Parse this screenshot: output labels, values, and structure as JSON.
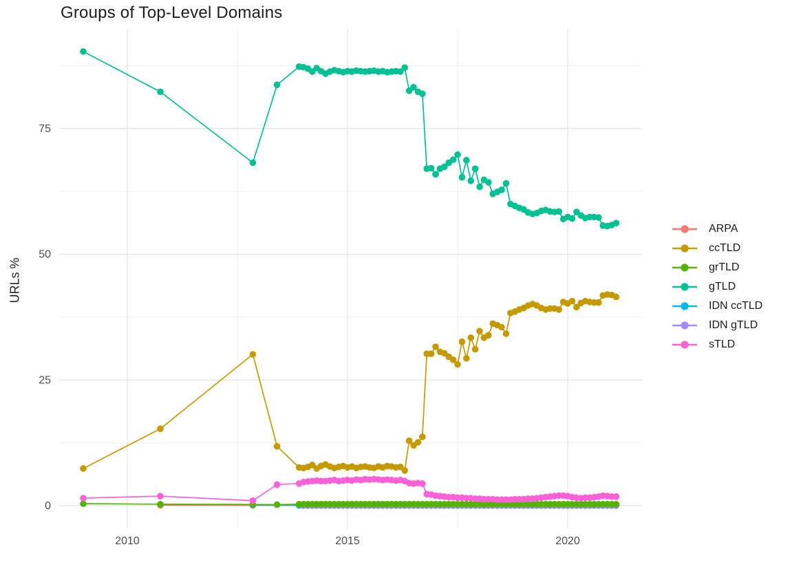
{
  "title": "Groups of Top-Level Domains",
  "axes": {
    "y_label": "URLs %",
    "y_ticks": [
      0,
      25,
      50,
      75
    ],
    "y_tick_labels": [
      "0",
      "25",
      "50",
      "75"
    ],
    "y_minor": [
      12.5,
      37.5,
      62.5,
      87.5
    ],
    "x_ticks": [
      2010,
      2015,
      2020
    ],
    "x_tick_labels": [
      "2010",
      "2015",
      "2020"
    ],
    "x_minor": [
      2012.5,
      2017.5
    ],
    "grid": true,
    "colors": {
      "major_grid": "#e2e2e2",
      "minor_grid": "#efefef",
      "tick_text": "#4d4d4d"
    }
  },
  "legend": {
    "position": "right",
    "items": [
      {
        "label": "ARPA",
        "color": "#F8766D"
      },
      {
        "label": "ccTLD",
        "color": "#C49A00"
      },
      {
        "label": "grTLD",
        "color": "#53B400"
      },
      {
        "label": "gTLD",
        "color": "#00C094"
      },
      {
        "label": "IDN ccTLD",
        "color": "#00B6EB"
      },
      {
        "label": "IDN gTLD",
        "color": "#A58AFF"
      },
      {
        "label": "sTLD",
        "color": "#FB61D7"
      }
    ]
  },
  "chart_data": {
    "type": "line-scatter",
    "title": "Groups of Top-Level Domains",
    "xlabel": "",
    "ylabel": "URLs %",
    "xlim": [
      2008.45,
      2021.7
    ],
    "ylim": [
      -4.5,
      94.8
    ],
    "draw_order": [
      "ARPA",
      "ccTLD",
      "IDN ccTLD",
      "IDN gTLD",
      "grTLD",
      "gTLD",
      "sTLD"
    ],
    "series": [
      {
        "name": "ARPA",
        "color": "#F8766D",
        "points": [
          [
            2010.75,
            0.1
          ],
          [
            2012.85,
            0.08
          ]
        ],
        "runs": [
          {
            "x0": 2013.9,
            "dx": 0.1,
            "n": 73,
            "y": 0.05
          }
        ]
      },
      {
        "name": "ccTLD",
        "color": "#C49A00",
        "points": [
          [
            2009.0,
            7.4
          ],
          [
            2010.75,
            15.3
          ],
          [
            2012.85,
            30.1
          ],
          [
            2013.4,
            11.8
          ],
          [
            2013.9,
            7.6
          ],
          [
            2014.0,
            7.5
          ],
          [
            2014.1,
            7.7
          ],
          [
            2014.2,
            8.1
          ],
          [
            2014.3,
            7.4
          ],
          [
            2014.4,
            7.9
          ],
          [
            2014.5,
            8.2
          ],
          [
            2014.6,
            7.8
          ],
          [
            2014.7,
            7.5
          ],
          [
            2014.8,
            7.7
          ],
          [
            2014.9,
            7.9
          ],
          [
            2015.0,
            7.6
          ],
          [
            2015.1,
            7.8
          ],
          [
            2015.2,
            7.5
          ],
          [
            2015.3,
            7.7
          ],
          [
            2015.4,
            7.8
          ],
          [
            2015.5,
            7.6
          ],
          [
            2015.6,
            7.5
          ],
          [
            2015.7,
            7.8
          ],
          [
            2015.8,
            7.6
          ],
          [
            2015.9,
            7.9
          ],
          [
            2016.0,
            7.8
          ],
          [
            2016.1,
            7.6
          ],
          [
            2016.2,
            7.7
          ],
          [
            2016.3,
            7.0
          ],
          [
            2016.4,
            12.9
          ],
          [
            2016.5,
            12.0
          ],
          [
            2016.6,
            12.6
          ],
          [
            2016.7,
            13.7
          ],
          [
            2016.8,
            30.2
          ],
          [
            2016.9,
            30.2
          ],
          [
            2017.0,
            31.6
          ],
          [
            2017.1,
            30.6
          ],
          [
            2017.2,
            30.3
          ],
          [
            2017.3,
            29.6
          ],
          [
            2017.4,
            29.0
          ],
          [
            2017.5,
            28.1
          ],
          [
            2017.6,
            32.6
          ],
          [
            2017.7,
            29.3
          ],
          [
            2017.8,
            33.4
          ],
          [
            2017.9,
            31.1
          ],
          [
            2018.0,
            34.7
          ],
          [
            2018.1,
            33.4
          ],
          [
            2018.2,
            33.9
          ],
          [
            2018.3,
            36.2
          ],
          [
            2018.4,
            35.9
          ],
          [
            2018.5,
            35.5
          ],
          [
            2018.6,
            34.2
          ],
          [
            2018.7,
            38.3
          ],
          [
            2018.8,
            38.6
          ],
          [
            2018.9,
            39.0
          ],
          [
            2019.0,
            39.3
          ],
          [
            2019.1,
            39.8
          ],
          [
            2019.2,
            40.1
          ],
          [
            2019.3,
            39.8
          ],
          [
            2019.4,
            39.3
          ],
          [
            2019.5,
            39.0
          ],
          [
            2019.6,
            39.2
          ],
          [
            2019.7,
            39.2
          ],
          [
            2019.8,
            39.0
          ],
          [
            2019.9,
            40.5
          ],
          [
            2020.0,
            40.2
          ],
          [
            2020.1,
            40.7
          ],
          [
            2020.2,
            39.5
          ],
          [
            2020.3,
            40.3
          ],
          [
            2020.4,
            40.7
          ],
          [
            2020.5,
            40.5
          ],
          [
            2020.6,
            40.4
          ],
          [
            2020.7,
            40.4
          ],
          [
            2020.8,
            41.8
          ],
          [
            2020.9,
            42.0
          ],
          [
            2021.0,
            41.9
          ],
          [
            2021.1,
            41.5
          ]
        ]
      },
      {
        "name": "grTLD",
        "color": "#53B400",
        "points": [
          [
            2009.0,
            0.4
          ],
          [
            2010.75,
            0.3
          ],
          [
            2012.85,
            0.25
          ],
          [
            2013.4,
            0.2
          ]
        ],
        "runs": [
          {
            "x0": 2013.9,
            "dx": 0.1,
            "n": 73,
            "y": 0.3
          }
        ]
      },
      {
        "name": "gTLD",
        "color": "#00C094",
        "points": [
          [
            2009.0,
            90.3
          ],
          [
            2010.75,
            82.3
          ],
          [
            2012.85,
            68.2
          ],
          [
            2013.4,
            83.7
          ],
          [
            2013.9,
            87.3
          ],
          [
            2014.0,
            87.2
          ],
          [
            2014.1,
            86.9
          ],
          [
            2014.2,
            86.3
          ],
          [
            2014.3,
            87.0
          ],
          [
            2014.4,
            86.4
          ],
          [
            2014.5,
            85.9
          ],
          [
            2014.6,
            86.3
          ],
          [
            2014.7,
            86.6
          ],
          [
            2014.8,
            86.4
          ],
          [
            2014.9,
            86.2
          ],
          [
            2015.0,
            86.4
          ],
          [
            2015.1,
            86.3
          ],
          [
            2015.2,
            86.5
          ],
          [
            2015.3,
            86.4
          ],
          [
            2015.4,
            86.3
          ],
          [
            2015.5,
            86.4
          ],
          [
            2015.6,
            86.5
          ],
          [
            2015.7,
            86.3
          ],
          [
            2015.8,
            86.4
          ],
          [
            2015.9,
            86.2
          ],
          [
            2016.0,
            86.3
          ],
          [
            2016.1,
            86.4
          ],
          [
            2016.2,
            86.3
          ],
          [
            2016.3,
            87.1
          ],
          [
            2016.4,
            82.5
          ],
          [
            2016.5,
            83.2
          ],
          [
            2016.6,
            82.3
          ],
          [
            2016.7,
            81.9
          ],
          [
            2016.8,
            67.0
          ],
          [
            2016.9,
            67.1
          ],
          [
            2017.0,
            65.9
          ],
          [
            2017.1,
            67.0
          ],
          [
            2017.2,
            67.4
          ],
          [
            2017.3,
            68.2
          ],
          [
            2017.4,
            68.8
          ],
          [
            2017.5,
            69.8
          ],
          [
            2017.6,
            65.3
          ],
          [
            2017.7,
            68.7
          ],
          [
            2017.8,
            64.6
          ],
          [
            2017.9,
            67.0
          ],
          [
            2018.0,
            63.4
          ],
          [
            2018.1,
            64.8
          ],
          [
            2018.2,
            64.3
          ],
          [
            2018.3,
            62.0
          ],
          [
            2018.4,
            62.4
          ],
          [
            2018.5,
            62.8
          ],
          [
            2018.6,
            64.1
          ],
          [
            2018.7,
            60.0
          ],
          [
            2018.8,
            59.6
          ],
          [
            2018.9,
            59.2
          ],
          [
            2019.0,
            58.9
          ],
          [
            2019.1,
            58.3
          ],
          [
            2019.2,
            58.0
          ],
          [
            2019.3,
            58.2
          ],
          [
            2019.4,
            58.6
          ],
          [
            2019.5,
            58.8
          ],
          [
            2019.6,
            58.5
          ],
          [
            2019.7,
            58.4
          ],
          [
            2019.8,
            58.5
          ],
          [
            2019.9,
            57.0
          ],
          [
            2020.0,
            57.4
          ],
          [
            2020.1,
            57.1
          ],
          [
            2020.2,
            58.4
          ],
          [
            2020.3,
            57.7
          ],
          [
            2020.4,
            57.2
          ],
          [
            2020.5,
            57.4
          ],
          [
            2020.6,
            57.4
          ],
          [
            2020.7,
            57.3
          ],
          [
            2020.8,
            55.7
          ],
          [
            2020.9,
            55.6
          ],
          [
            2021.0,
            55.8
          ],
          [
            2021.1,
            56.2
          ]
        ]
      },
      {
        "name": "IDN ccTLD",
        "color": "#00B6EB",
        "points": [
          [
            2012.85,
            0.15
          ]
        ],
        "runs": [
          {
            "x0": 2013.9,
            "dx": 0.1,
            "n": 73,
            "y": 0.08
          }
        ]
      },
      {
        "name": "IDN gTLD",
        "color": "#A58AFF",
        "points": [],
        "runs": [
          {
            "x0": 2014.0,
            "dx": 0.1,
            "n": 72,
            "y": 0.02
          }
        ]
      },
      {
        "name": "sTLD",
        "color": "#FB61D7",
        "points": [
          [
            2009.0,
            1.5
          ],
          [
            2010.75,
            1.9
          ],
          [
            2012.85,
            1.0
          ],
          [
            2013.4,
            4.2
          ],
          [
            2013.9,
            4.4
          ],
          [
            2014.0,
            4.7
          ],
          [
            2014.1,
            4.8
          ],
          [
            2014.2,
            4.9
          ],
          [
            2014.3,
            5.0
          ],
          [
            2014.4,
            4.9
          ],
          [
            2014.5,
            4.9
          ],
          [
            2014.6,
            5.0
          ],
          [
            2014.7,
            5.1
          ],
          [
            2014.8,
            4.9
          ],
          [
            2014.9,
            5.0
          ],
          [
            2015.0,
            5.1
          ],
          [
            2015.1,
            5.0
          ],
          [
            2015.2,
            5.2
          ],
          [
            2015.3,
            5.1
          ],
          [
            2015.4,
            5.3
          ],
          [
            2015.5,
            5.2
          ],
          [
            2015.6,
            5.3
          ],
          [
            2015.7,
            5.2
          ],
          [
            2015.8,
            5.1
          ],
          [
            2015.9,
            5.2
          ],
          [
            2016.0,
            5.1
          ],
          [
            2016.1,
            5.0
          ],
          [
            2016.2,
            5.1
          ],
          [
            2016.3,
            4.9
          ],
          [
            2016.4,
            4.5
          ],
          [
            2016.5,
            4.4
          ],
          [
            2016.6,
            4.5
          ],
          [
            2016.7,
            4.4
          ],
          [
            2016.8,
            2.3
          ],
          [
            2016.9,
            2.2
          ],
          [
            2017.0,
            2.0
          ],
          [
            2017.1,
            1.9
          ],
          [
            2017.2,
            1.8
          ],
          [
            2017.3,
            1.7
          ],
          [
            2017.4,
            1.7
          ],
          [
            2017.5,
            1.6
          ],
          [
            2017.6,
            1.6
          ],
          [
            2017.7,
            1.5
          ],
          [
            2017.8,
            1.5
          ],
          [
            2017.9,
            1.4
          ],
          [
            2018.0,
            1.4
          ],
          [
            2018.1,
            1.3
          ],
          [
            2018.2,
            1.3
          ],
          [
            2018.3,
            1.3
          ],
          [
            2018.4,
            1.2
          ],
          [
            2018.5,
            1.2
          ],
          [
            2018.6,
            1.2
          ],
          [
            2018.7,
            1.2
          ],
          [
            2018.8,
            1.3
          ],
          [
            2018.9,
            1.3
          ],
          [
            2019.0,
            1.3
          ],
          [
            2019.1,
            1.4
          ],
          [
            2019.2,
            1.4
          ],
          [
            2019.3,
            1.5
          ],
          [
            2019.4,
            1.6
          ],
          [
            2019.5,
            1.7
          ],
          [
            2019.6,
            1.8
          ],
          [
            2019.7,
            1.9
          ],
          [
            2019.8,
            2.0
          ],
          [
            2019.9,
            2.0
          ],
          [
            2020.0,
            1.9
          ],
          [
            2020.1,
            1.7
          ],
          [
            2020.2,
            1.6
          ],
          [
            2020.3,
            1.5
          ],
          [
            2020.4,
            1.6
          ],
          [
            2020.5,
            1.6
          ],
          [
            2020.6,
            1.7
          ],
          [
            2020.7,
            1.8
          ],
          [
            2020.8,
            2.0
          ],
          [
            2020.9,
            1.9
          ],
          [
            2021.0,
            1.8
          ],
          [
            2021.1,
            1.8
          ]
        ]
      }
    ]
  }
}
